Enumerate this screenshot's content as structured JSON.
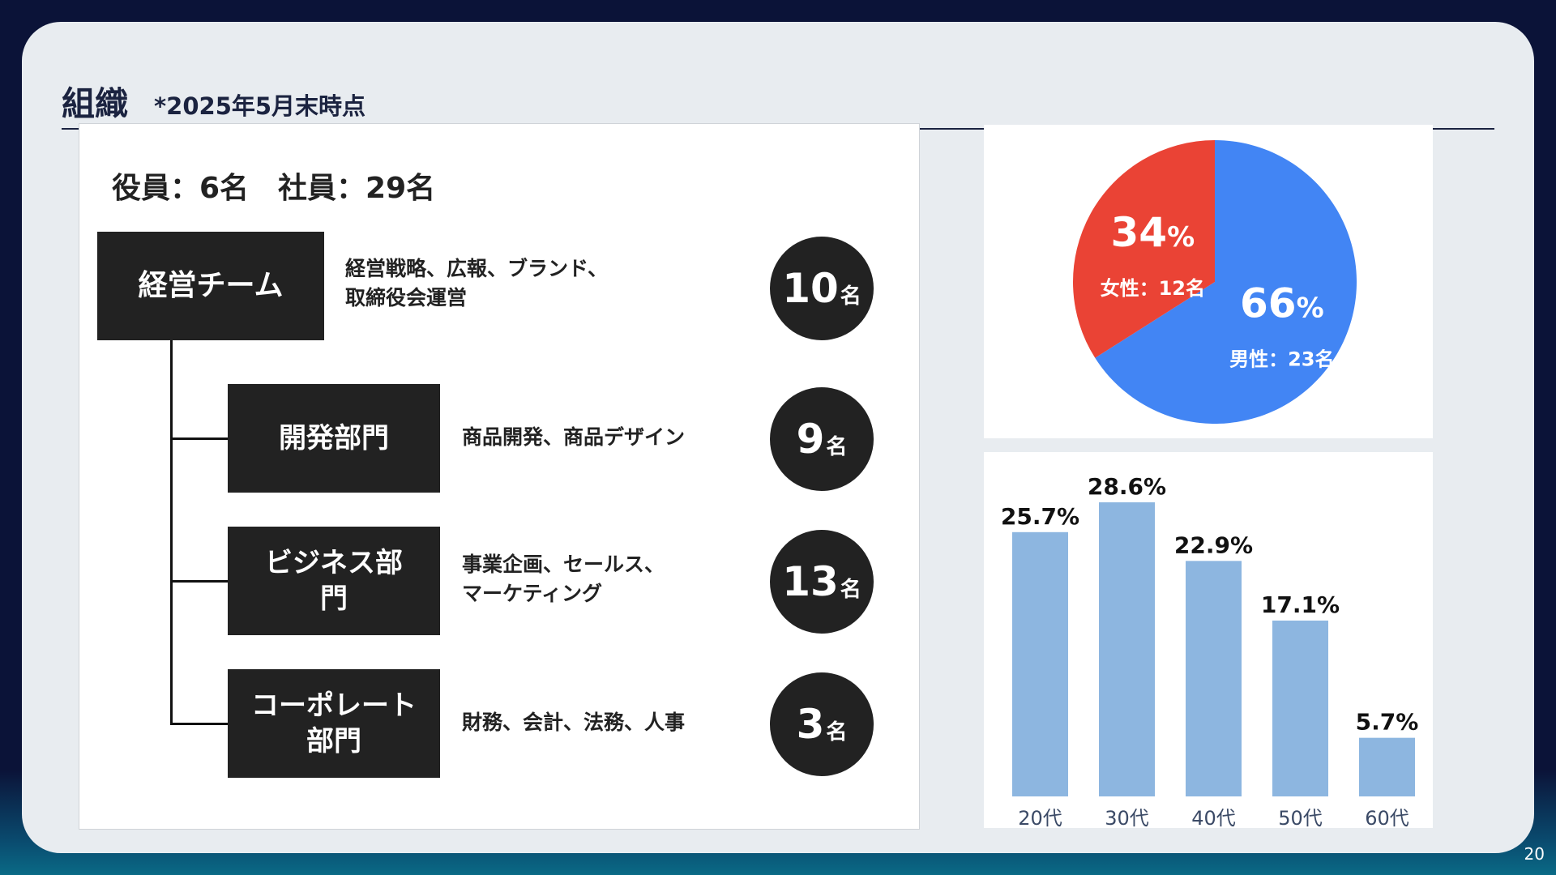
{
  "header": {
    "title": "組織",
    "subtitle": "*2025年5月末時点"
  },
  "org": {
    "headcount": "役員：6名　社員：29名",
    "management": {
      "label": "経営チーム",
      "desc_lines": [
        "経営戦略、広報、ブランド、",
        "取締役会運営"
      ],
      "count": "10",
      "unit": "名"
    },
    "departments": [
      {
        "label_lines": [
          "開発部門"
        ],
        "desc_lines": [
          "商品開発、商品デザイン"
        ],
        "count": "9",
        "unit": "名"
      },
      {
        "label_lines": [
          "ビジネス部",
          "門"
        ],
        "desc_lines": [
          "事業企画、セールス、",
          "マーケティング"
        ],
        "count": "13",
        "unit": "名"
      },
      {
        "label_lines": [
          "コーポレート",
          "部門"
        ],
        "desc_lines": [
          "財務、会計、法務、人事"
        ],
        "count": "3",
        "unit": "名"
      }
    ]
  },
  "chart_data": [
    {
      "type": "pie",
      "title": "",
      "slices": [
        {
          "label": "男性：23名",
          "value": 66,
          "display": "66",
          "unit": "%",
          "color": "#4285f4"
        },
        {
          "label": "女性：12名",
          "value": 34,
          "display": "34",
          "unit": "%",
          "color": "#ea4335"
        }
      ]
    },
    {
      "type": "bar",
      "title": "",
      "categories": [
        "20代",
        "30代",
        "40代",
        "50代",
        "60代"
      ],
      "values": [
        25.7,
        28.6,
        22.9,
        17.1,
        5.7
      ],
      "data_labels": [
        "25.7%",
        "28.6%",
        "22.9%",
        "17.1%",
        "5.7%"
      ],
      "ylim": [
        0,
        28.6
      ],
      "color": "#8db6e0"
    }
  ],
  "page_number": "20"
}
